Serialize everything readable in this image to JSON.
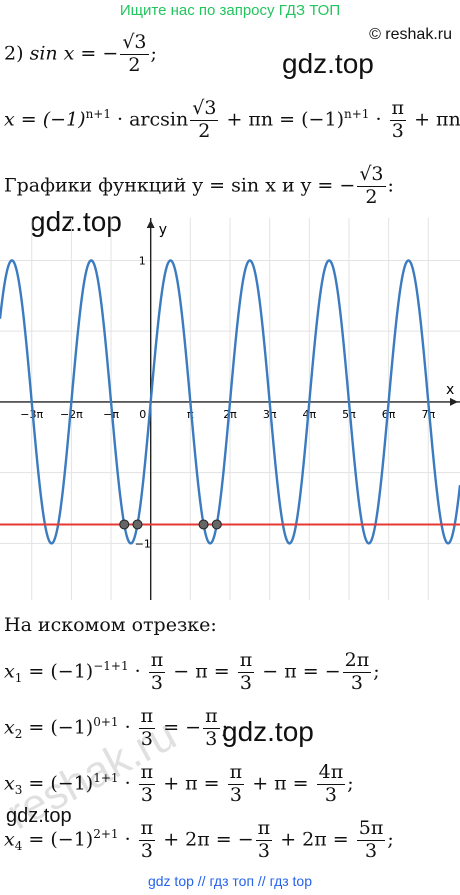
{
  "banner": "Ищите нас по запросу ГДЗ ТОП",
  "site": "© reshak.ru",
  "watermark": "gdz.top",
  "ghost_mark": "reshak.ru",
  "problem": {
    "number": "2)",
    "lhs": "sin x = −",
    "num": "√3",
    "den": "2",
    "tail": ";"
  },
  "solution": {
    "start": "x = (−1)",
    "exp": "n+1",
    "arcsin": " · arcsin",
    "num": "√3",
    "den": "2",
    "mid": " + πn = (−1)",
    "exp2": "n+1",
    "dot": " · ",
    "pi_num": "π",
    "pi_den": "3",
    "end": " + πn;"
  },
  "graphs_caption": {
    "text": "Графики функций y = sin x  и y = −",
    "num": "√3",
    "den": "2",
    "tail": ":"
  },
  "chart_data": {
    "type": "line",
    "series": [
      {
        "name": "y = sin x",
        "color": "#3b7bbf",
        "function": "sin"
      },
      {
        "name": "y = −√3/2",
        "color": "#e53935",
        "constant": -0.866
      }
    ],
    "xlim": [
      -3.8,
      7.8
    ],
    "ylim": [
      -1.4,
      1.3
    ],
    "x_unit": "π",
    "x_ticks": [
      "−3π",
      "−2π",
      "−π",
      "0",
      "π",
      "2π",
      "3π",
      "4π",
      "5π",
      "6π",
      "7π"
    ],
    "y_ticks": [
      "1",
      "−1"
    ],
    "xlabel": "x",
    "ylabel": "y",
    "points_over_pi": [
      -0.6667,
      -0.3333,
      1.3333,
      1.6667
    ],
    "grid": true
  },
  "segment_caption": "На искомом отрезке:",
  "roots": [
    {
      "lhs": "x",
      "sub": "1",
      "parts": [
        "= (−1)",
        "−1+1",
        " · ",
        "π",
        "3",
        " − π = ",
        "π",
        "3",
        " − π = −",
        "2π",
        "3",
        ";"
      ]
    },
    {
      "lhs": "x",
      "sub": "2",
      "parts": [
        "= (−1)",
        "0+1",
        " · ",
        "π",
        "3",
        " = −",
        "π",
        "3",
        ";"
      ]
    },
    {
      "lhs": "x",
      "sub": "3",
      "parts": [
        "= (−1)",
        "1+1",
        " · ",
        "π",
        "3",
        " + π = ",
        "π",
        "3",
        " + π = ",
        "4π",
        "3",
        ";"
      ]
    },
    {
      "lhs": "x",
      "sub": "4",
      "parts": [
        "= (−1)",
        "2+1",
        " · ",
        "π",
        "3",
        " + 2π = −",
        "π",
        "3",
        " + 2π = ",
        "5π",
        "3",
        ";"
      ]
    }
  ],
  "footer": "gdz top  //  гдз топ  //  гдз top"
}
